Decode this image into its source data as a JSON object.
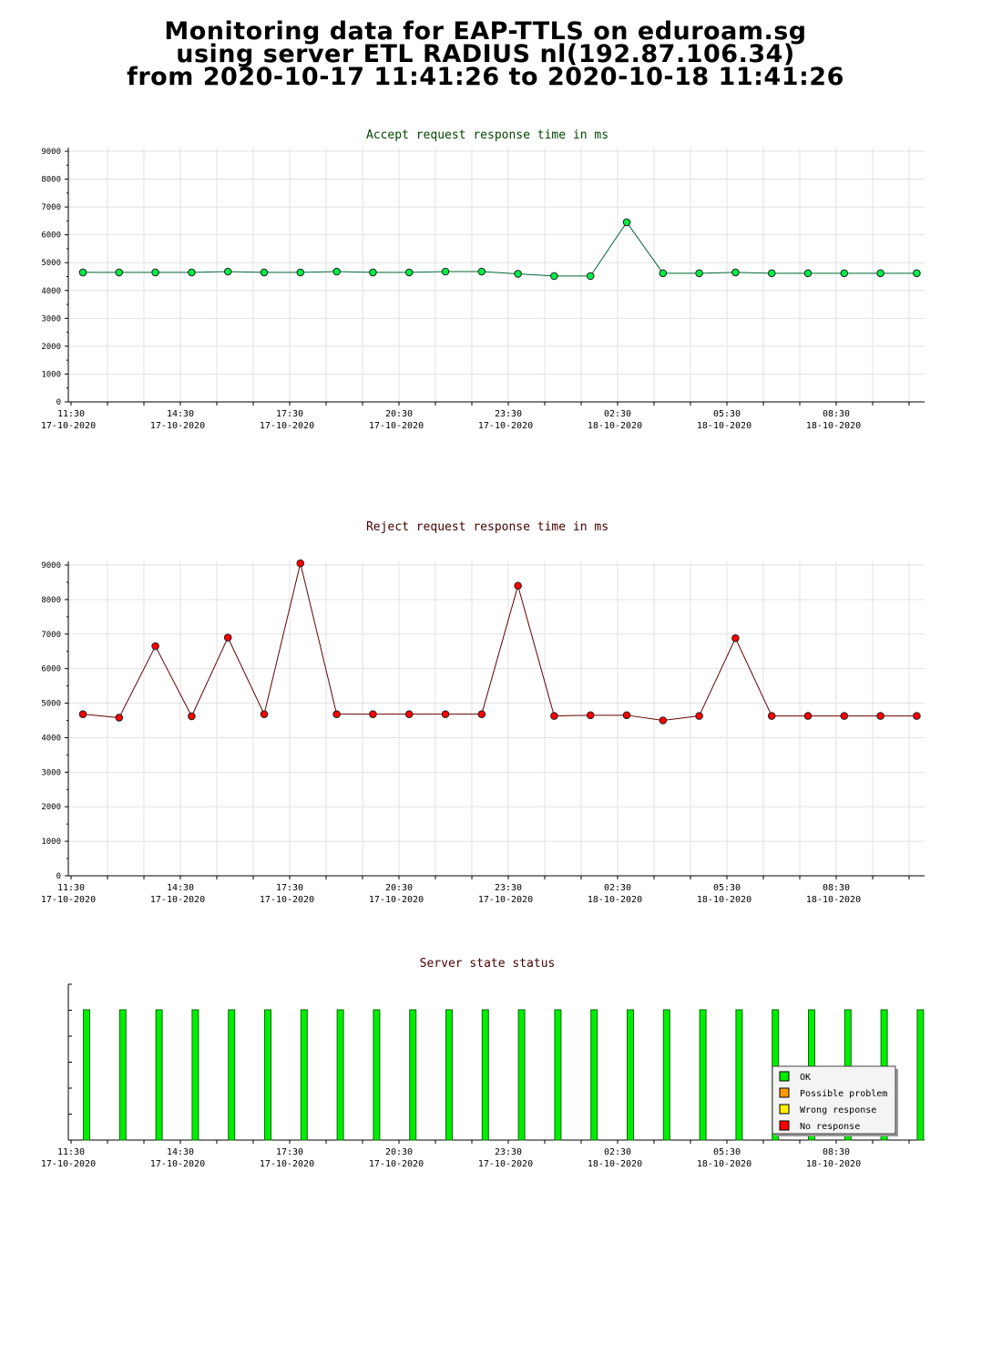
{
  "header": {
    "line1": "Monitoring data for EAP-TTLS on eduroam.sg",
    "line2": "using server ETL RADIUS nl(192.87.106.34)",
    "line3": "from 2020-10-17 11:41:26 to 2020-10-18 11:41:26"
  },
  "x_ticks": [
    {
      "time": "11:30",
      "date": "17-10-2020"
    },
    {
      "time": "14:30",
      "date": "17-10-2020"
    },
    {
      "time": "17:30",
      "date": "17-10-2020"
    },
    {
      "time": "20:30",
      "date": "17-10-2020"
    },
    {
      "time": "23:30",
      "date": "17-10-2020"
    },
    {
      "time": "02:30",
      "date": "18-10-2020"
    },
    {
      "time": "05:30",
      "date": "18-10-2020"
    },
    {
      "time": "08:30",
      "date": "18-10-2020"
    }
  ],
  "legend": {
    "items": [
      {
        "label": "OK",
        "color": "#00ee00"
      },
      {
        "label": "Possible problem",
        "color": "#ff9900"
      },
      {
        "label": "Wrong response",
        "color": "#ffee00"
      },
      {
        "label": "No response",
        "color": "#ff0000"
      }
    ]
  },
  "colors": {
    "accept_title": "#004400",
    "reject_title": "#440000",
    "status_title": "#440000",
    "accept_marker": "#00ee44",
    "reject_marker": "#ff0000",
    "accept_line": "#006633",
    "reject_line": "#660000",
    "ok_bar": "#00ee00"
  },
  "chart_data": [
    {
      "type": "line",
      "title": "Accept request response time in ms",
      "ylim": [
        0,
        9000
      ],
      "yticks": [
        0,
        1000,
        2000,
        3000,
        4000,
        5000,
        6000,
        7000,
        8000,
        9000
      ],
      "grid": true,
      "x": [
        "11:41",
        "12:41",
        "13:41",
        "14:41",
        "15:41",
        "16:41",
        "17:41",
        "18:41",
        "19:41",
        "20:41",
        "21:41",
        "22:41",
        "23:41",
        "00:41",
        "01:41",
        "02:41",
        "03:41",
        "04:41",
        "05:41",
        "06:41",
        "07:41",
        "08:41",
        "09:41",
        "10:41"
      ],
      "values": [
        4650,
        4650,
        4650,
        4650,
        4680,
        4650,
        4650,
        4680,
        4650,
        4650,
        4680,
        4680,
        4600,
        4520,
        4520,
        6450,
        4620,
        4620,
        4650,
        4620,
        4620,
        4620,
        4620,
        4620
      ]
    },
    {
      "type": "line",
      "title": "Reject request response time in ms",
      "ylim": [
        0,
        9000
      ],
      "yticks": [
        0,
        1000,
        2000,
        3000,
        4000,
        5000,
        6000,
        7000,
        8000,
        9000
      ],
      "grid": true,
      "x": [
        "11:41",
        "12:41",
        "13:41",
        "14:41",
        "15:41",
        "16:41",
        "17:41",
        "18:41",
        "19:41",
        "20:41",
        "21:41",
        "22:41",
        "23:41",
        "00:41",
        "01:41",
        "02:41",
        "03:41",
        "04:41",
        "05:41",
        "06:41",
        "07:41",
        "08:41",
        "09:41",
        "10:41"
      ],
      "values": [
        4680,
        4580,
        6650,
        4620,
        6900,
        4680,
        9050,
        4680,
        4680,
        4680,
        4680,
        4680,
        8400,
        4630,
        4650,
        4650,
        4500,
        4630,
        6880,
        4630,
        4630,
        4630,
        4630,
        4630
      ]
    },
    {
      "type": "bar",
      "title": "Server state status",
      "x": [
        "11:41",
        "12:41",
        "13:41",
        "14:41",
        "15:41",
        "16:41",
        "17:41",
        "18:41",
        "19:41",
        "20:41",
        "21:41",
        "22:41",
        "23:41",
        "00:41",
        "01:41",
        "02:41",
        "03:41",
        "04:41",
        "05:41",
        "06:41",
        "07:41",
        "08:41",
        "09:41",
        "10:41"
      ],
      "states": [
        "OK",
        "OK",
        "OK",
        "OK",
        "OK",
        "OK",
        "OK",
        "OK",
        "OK",
        "OK",
        "OK",
        "OK",
        "OK",
        "OK",
        "OK",
        "OK",
        "OK",
        "OK",
        "OK",
        "OK",
        "OK",
        "OK",
        "OK",
        "OK"
      ],
      "legend_position": "bottom-right"
    }
  ]
}
